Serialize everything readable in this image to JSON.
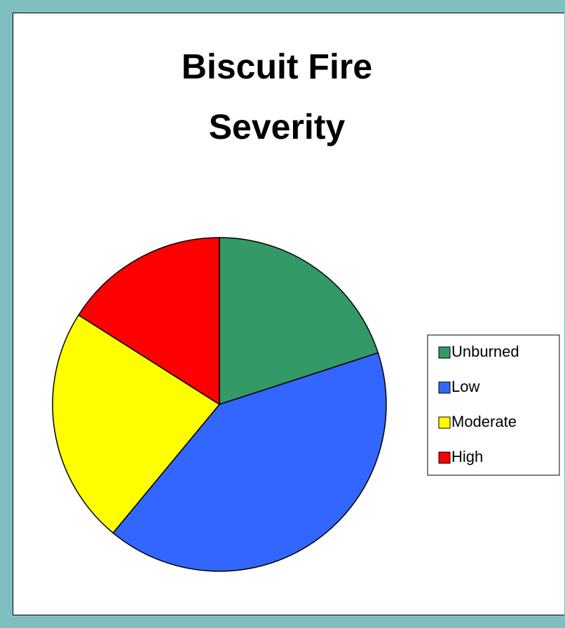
{
  "chart_data": {
    "type": "pie",
    "title": "Biscuit Fire Severity",
    "categories": [
      "Unburned",
      "Low",
      "Moderate",
      "High"
    ],
    "values": [
      20,
      41,
      23,
      16
    ],
    "colors": [
      "#339966",
      "#3366ff",
      "#ffff00",
      "#ff0000"
    ],
    "legend": "right"
  }
}
